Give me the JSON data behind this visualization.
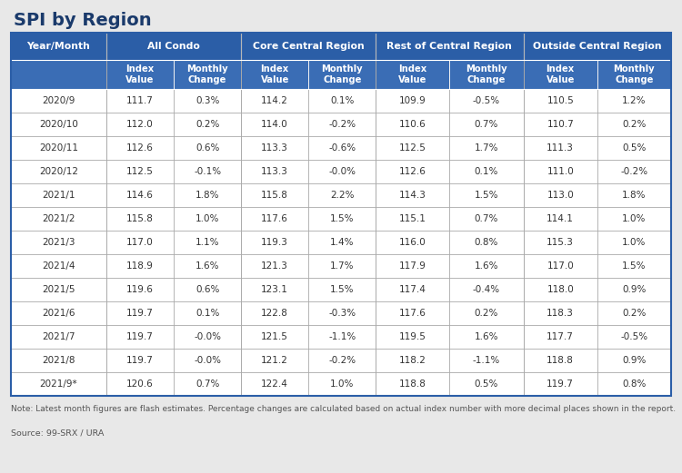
{
  "title": "SPI by Region",
  "note": "Note: Latest month figures are flash estimates. Percentage changes are calculated based on actual index number with more decimal places shown in the report.",
  "source": "Source: 99-SRX / URA",
  "rows": [
    [
      "2020/9",
      "111.7",
      "0.3%",
      "114.2",
      "0.1%",
      "109.9",
      "-0.5%",
      "110.5",
      "1.2%"
    ],
    [
      "2020/10",
      "112.0",
      "0.2%",
      "114.0",
      "-0.2%",
      "110.6",
      "0.7%",
      "110.7",
      "0.2%"
    ],
    [
      "2020/11",
      "112.6",
      "0.6%",
      "113.3",
      "-0.6%",
      "112.5",
      "1.7%",
      "111.3",
      "0.5%"
    ],
    [
      "2020/12",
      "112.5",
      "-0.1%",
      "113.3",
      "-0.0%",
      "112.6",
      "0.1%",
      "111.0",
      "-0.2%"
    ],
    [
      "2021/1",
      "114.6",
      "1.8%",
      "115.8",
      "2.2%",
      "114.3",
      "1.5%",
      "113.0",
      "1.8%"
    ],
    [
      "2021/2",
      "115.8",
      "1.0%",
      "117.6",
      "1.5%",
      "115.1",
      "0.7%",
      "114.1",
      "1.0%"
    ],
    [
      "2021/3",
      "117.0",
      "1.1%",
      "119.3",
      "1.4%",
      "116.0",
      "0.8%",
      "115.3",
      "1.0%"
    ],
    [
      "2021/4",
      "118.9",
      "1.6%",
      "121.3",
      "1.7%",
      "117.9",
      "1.6%",
      "117.0",
      "1.5%"
    ],
    [
      "2021/5",
      "119.6",
      "0.6%",
      "123.1",
      "1.5%",
      "117.4",
      "-0.4%",
      "118.0",
      "0.9%"
    ],
    [
      "2021/6",
      "119.7",
      "0.1%",
      "122.8",
      "-0.3%",
      "117.6",
      "0.2%",
      "118.3",
      "0.2%"
    ],
    [
      "2021/7",
      "119.7",
      "-0.0%",
      "121.5",
      "-1.1%",
      "119.5",
      "1.6%",
      "117.7",
      "-0.5%"
    ],
    [
      "2021/8",
      "119.7",
      "-0.0%",
      "121.2",
      "-0.2%",
      "118.2",
      "-1.1%",
      "118.8",
      "0.9%"
    ],
    [
      "2021/9*",
      "120.6",
      "0.7%",
      "122.4",
      "1.0%",
      "118.8",
      "0.5%",
      "119.7",
      "0.8%"
    ]
  ],
  "header_bg": "#2B5EA7",
  "header_text": "#FFFFFF",
  "subheader_bg": "#3A6DB5",
  "subheader_text": "#FFFFFF",
  "row_bg": "#FFFFFF",
  "border_color": "#AAAAAA",
  "border_color_dark": "#888888",
  "title_color": "#1A3A6B",
  "outer_border": "#2B5EA7",
  "background": "#E8E8E8",
  "text_color": "#333333",
  "note_color": "#555555"
}
